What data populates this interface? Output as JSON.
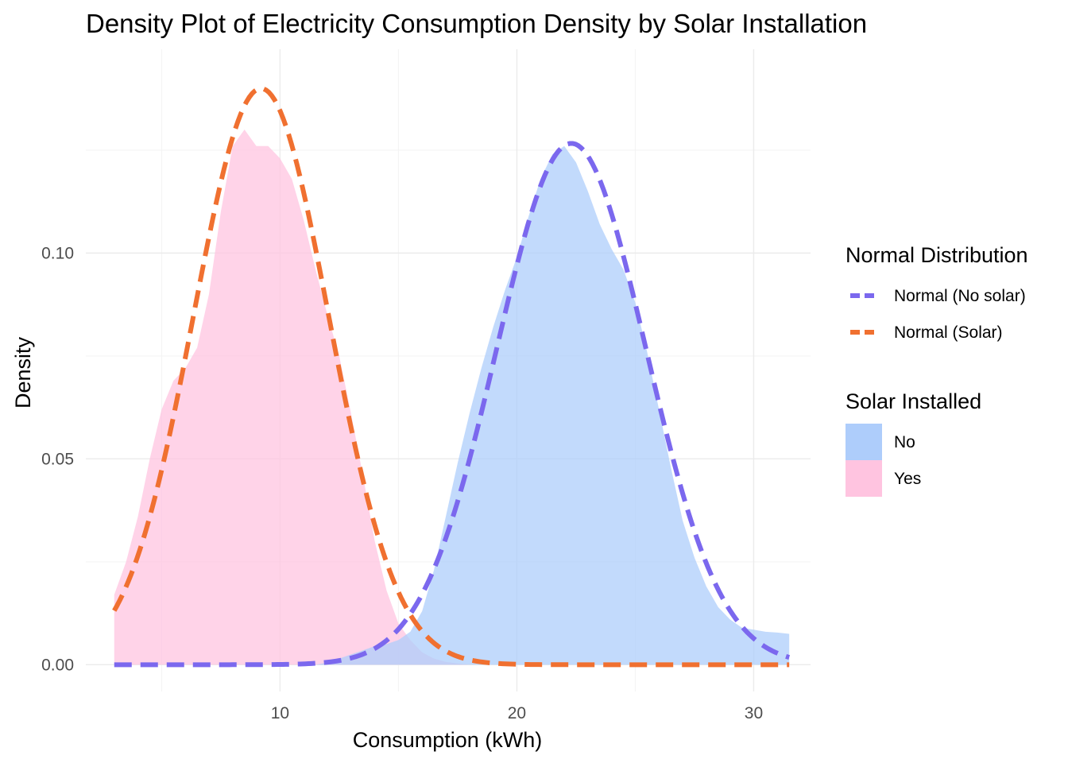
{
  "chart_data": {
    "type": "area",
    "title": "Density Plot of Electricity Consumption Density by Solar Installation",
    "xlabel": "Consumption (kWh)",
    "ylabel": "Density",
    "xlim": [
      1.8,
      32.4
    ],
    "ylim": [
      -0.0065,
      0.1495
    ],
    "x_ticks": [
      10,
      20,
      30
    ],
    "x_tick_labels": [
      "10",
      "20",
      "30"
    ],
    "x_minor_ticks": [
      5,
      15,
      25
    ],
    "y_ticks": [
      0.0,
      0.05,
      0.1
    ],
    "y_tick_labels": [
      "0.00",
      "0.05",
      "0.10"
    ],
    "y_minor_ticks": [
      0.025,
      0.075,
      0.125
    ],
    "grid": true,
    "legend_position": "right",
    "legends": [
      {
        "title": "Normal Distribution",
        "entries": [
          {
            "label": "Normal (No solar)",
            "color": "#7b68ee",
            "style": "dashed-line"
          },
          {
            "label": "Normal (Solar)",
            "color": "#f07030",
            "style": "dashed-line"
          }
        ]
      },
      {
        "title": "Solar Installed",
        "entries": [
          {
            "label": "No",
            "color": "#aecdfb",
            "style": "fill"
          },
          {
            "label": "Yes",
            "color": "#ffc4e0",
            "style": "fill"
          }
        ]
      }
    ],
    "density_series": [
      {
        "name": "Yes",
        "color": "#ffc4e0",
        "x": [
          3.0,
          3.5,
          4.0,
          4.5,
          5.0,
          5.5,
          6.0,
          6.5,
          7.0,
          7.5,
          8.0,
          8.5,
          9.0,
          9.5,
          10.0,
          10.5,
          11.0,
          11.5,
          12.0,
          12.5,
          13.0,
          13.5,
          14.0,
          14.5,
          15.0,
          15.5,
          16.0,
          16.5,
          17.0,
          17.5,
          18.0
        ],
        "y": [
          0.017,
          0.025,
          0.036,
          0.05,
          0.062,
          0.069,
          0.072,
          0.077,
          0.09,
          0.11,
          0.126,
          0.13,
          0.126,
          0.126,
          0.123,
          0.118,
          0.108,
          0.096,
          0.085,
          0.075,
          0.061,
          0.046,
          0.03,
          0.018,
          0.01,
          0.006,
          0.003,
          0.0015,
          0.0007,
          0.0003,
          0.0
        ]
      },
      {
        "name": "No",
        "color": "#aecdfb",
        "x": [
          11.5,
          12.0,
          12.5,
          13.0,
          13.5,
          14.0,
          14.5,
          15.0,
          15.5,
          16.0,
          16.5,
          17.0,
          17.5,
          18.0,
          18.5,
          19.0,
          19.5,
          20.0,
          20.5,
          21.0,
          21.5,
          22.0,
          22.5,
          23.0,
          23.5,
          24.0,
          24.5,
          25.0,
          25.5,
          26.0,
          26.5,
          27.0,
          27.5,
          28.0,
          28.5,
          29.0,
          29.5,
          30.0,
          30.5,
          31.0,
          31.5
        ],
        "y": [
          0.0,
          0.0005,
          0.0015,
          0.0025,
          0.0035,
          0.0045,
          0.005,
          0.006,
          0.008,
          0.013,
          0.023,
          0.036,
          0.049,
          0.061,
          0.072,
          0.082,
          0.091,
          0.099,
          0.109,
          0.118,
          0.124,
          0.126,
          0.122,
          0.115,
          0.107,
          0.101,
          0.096,
          0.088,
          0.076,
          0.062,
          0.048,
          0.035,
          0.026,
          0.019,
          0.014,
          0.011,
          0.009,
          0.0085,
          0.008,
          0.0078,
          0.0075
        ]
      }
    ],
    "normal_series": [
      {
        "name": "Normal (No solar)",
        "color": "#7b68ee",
        "mean": 22.3,
        "sd": 3.15
      },
      {
        "name": "Normal (Solar)",
        "color": "#f07030",
        "mean": 9.2,
        "sd": 2.85
      }
    ],
    "normal_x_range": [
      3.0,
      31.5
    ]
  }
}
